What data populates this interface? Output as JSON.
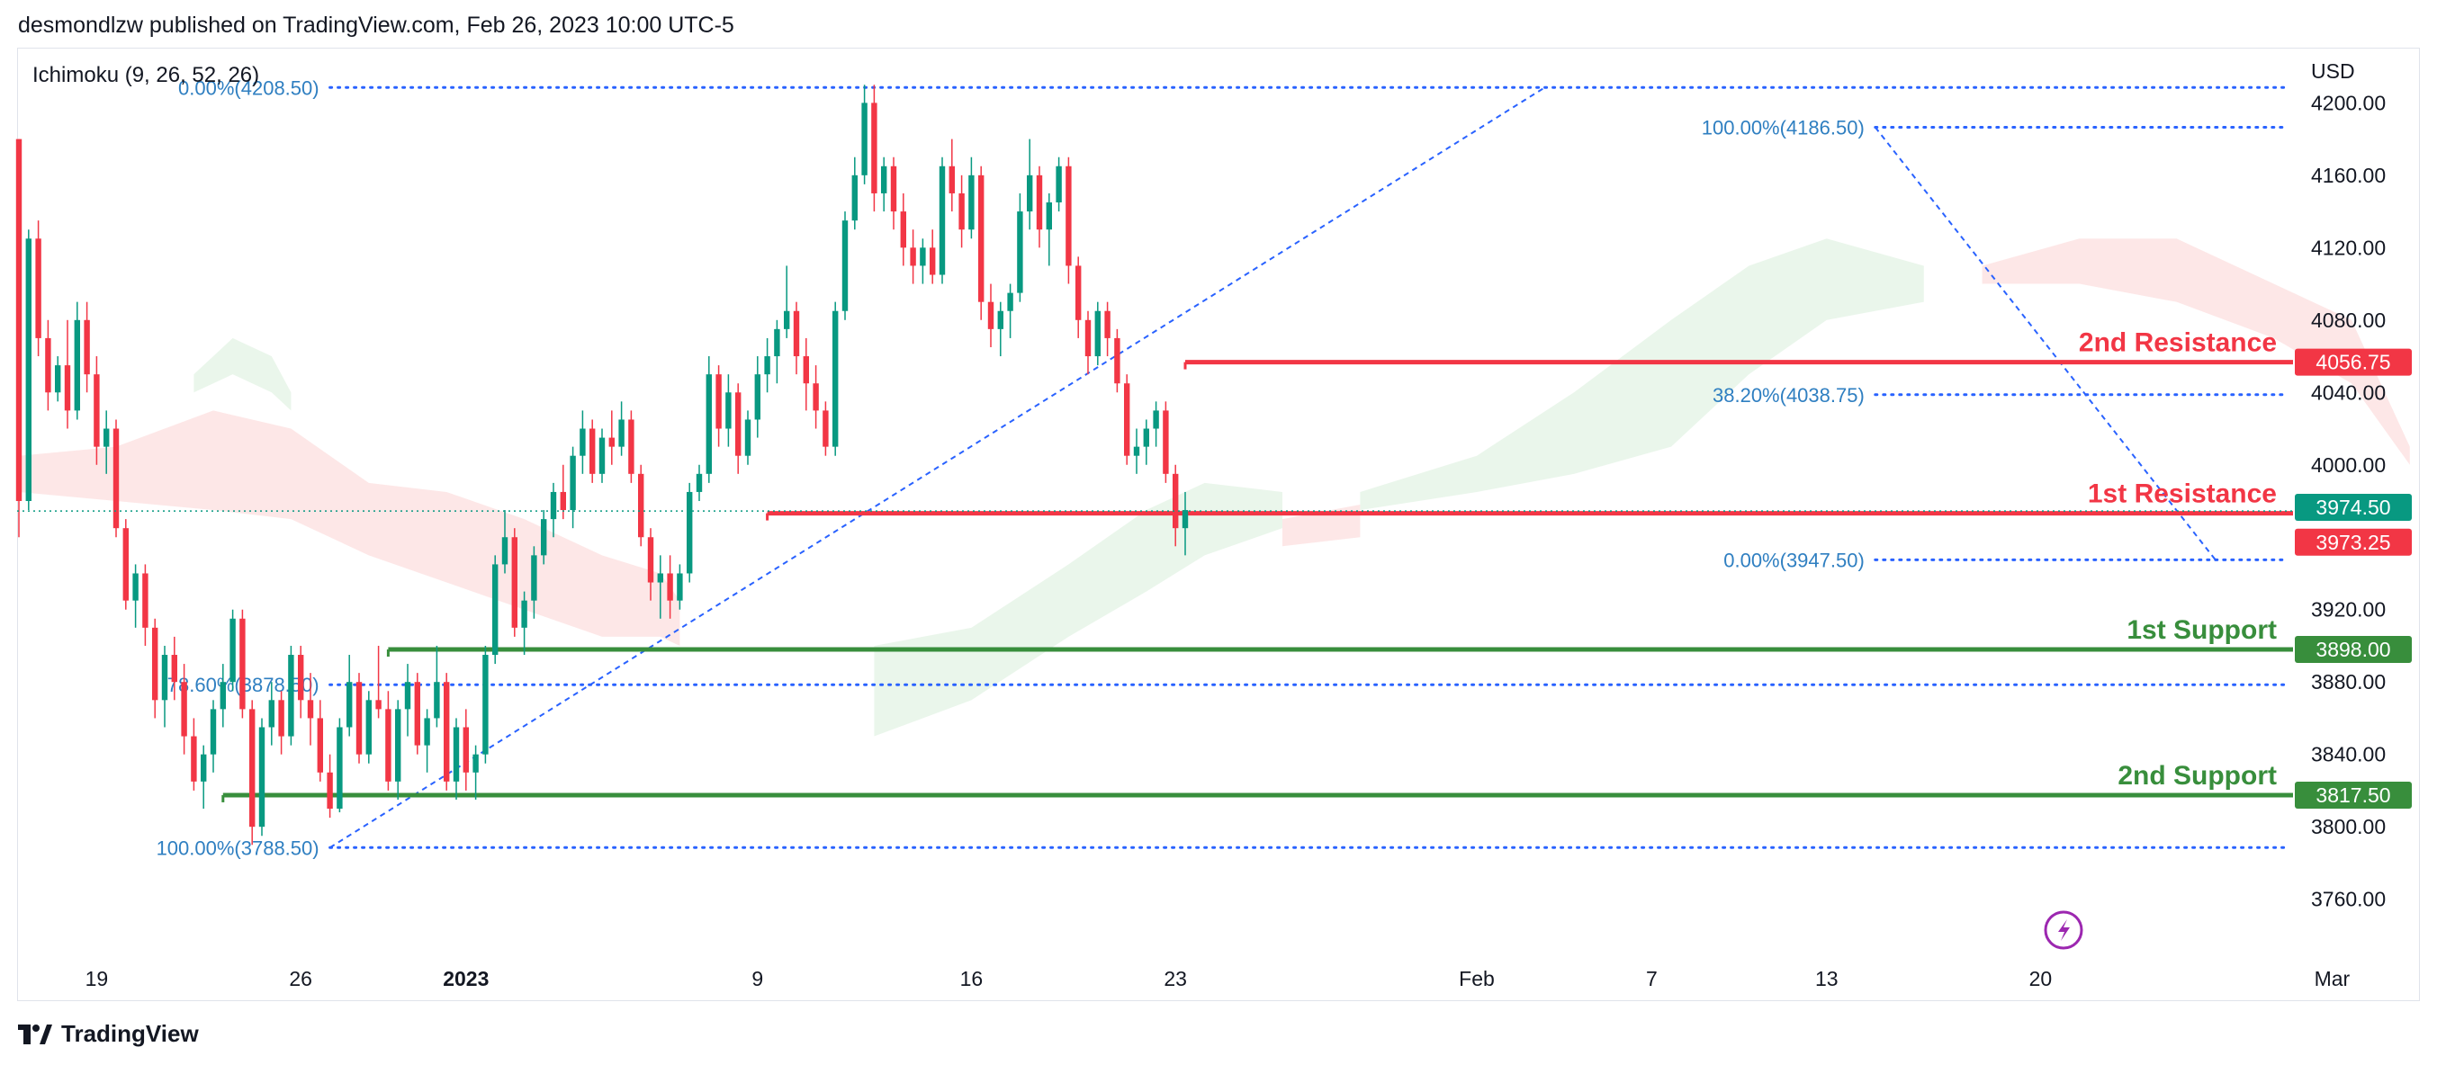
{
  "header": {
    "text": "desmondlzw published on TradingView.com, Feb 26, 2023 10:00 UTC-5"
  },
  "footer": {
    "brand": "TradingView"
  },
  "colors": {
    "up": "#089981",
    "down": "#f23645",
    "resistance": "#f23645",
    "support": "#388e3c",
    "fib": "#2962ff",
    "fib_text": "#2f7fc1",
    "cloud_bull": "#e8f5e9",
    "cloud_bear": "#fde4e4"
  },
  "chart_data": {
    "type": "candlestick",
    "indicator": "Ichimoku (9, 26, 52, 26)",
    "currency": "USD",
    "ylim": [
      3730,
      4230
    ],
    "y_ticks": [
      3760,
      3800,
      3840,
      3880,
      3920,
      4000,
      4040,
      4080,
      4120,
      4160,
      4200
    ],
    "x_ticks": [
      {
        "label": "19",
        "bar": 8
      },
      {
        "label": "26",
        "bar": 29
      },
      {
        "label": "2023",
        "bar": 46,
        "bold": true
      },
      {
        "label": "9",
        "bar": 76
      },
      {
        "label": "16",
        "bar": 98
      },
      {
        "label": "23",
        "bar": 119
      },
      {
        "label": "Feb",
        "bar": 150
      },
      {
        "label": "7",
        "bar": 168
      },
      {
        "label": "13",
        "bar": 186
      },
      {
        "label": "20",
        "bar": 208
      },
      {
        "label": "Mar",
        "bar": 238
      }
    ],
    "last_price": 3974.5,
    "levels": [
      {
        "name": "2nd Resistance",
        "value": 4056.75,
        "label": "4056.75",
        "kind": "resistance",
        "start_bar": 120
      },
      {
        "name": "1st Resistance",
        "value": 3973.25,
        "label": "3973.25",
        "kind": "resistance",
        "start_bar": 77
      },
      {
        "name": "1st Support",
        "value": 3898.0,
        "label": "3898.00",
        "kind": "support",
        "start_bar": 38
      },
      {
        "name": "2nd Support",
        "value": 3817.5,
        "label": "3817.50",
        "kind": "support",
        "start_bar": 21
      }
    ],
    "fibs": [
      {
        "label": "0.00%(4208.50)",
        "value": 4208.5,
        "x0_bar": 32,
        "x1_bar": 251,
        "label_side": "left",
        "label_bar": 32
      },
      {
        "label": "78.60%(3878.50)",
        "value": 3878.5,
        "x0_bar": 32,
        "x1_bar": 251,
        "label_side": "left",
        "label_bar": 32
      },
      {
        "label": "100.00%(3788.50)",
        "value": 3788.5,
        "x0_bar": 32,
        "x1_bar": 251,
        "label_side": "left",
        "label_bar": 32
      },
      {
        "label": "100.00%(4186.50)",
        "value": 4186.5,
        "x0_bar": 191,
        "x1_bar": 251,
        "label_side": "left",
        "label_bar": 191
      },
      {
        "label": "38.20%(4038.75)",
        "value": 4038.75,
        "x0_bar": 191,
        "x1_bar": 251,
        "label_side": "left",
        "label_bar": 191
      },
      {
        "label": "0.00%(3947.50)",
        "value": 3947.5,
        "x0_bar": 191,
        "x1_bar": 251,
        "label_side": "left",
        "label_bar": 191
      }
    ],
    "trend_lines": [
      {
        "from": [
          32,
          3788.5
        ],
        "to": [
          157,
          4208.5
        ]
      },
      {
        "from": [
          191,
          4186.5
        ],
        "to": [
          226,
          3947.5
        ]
      }
    ],
    "cloud": [
      {
        "kind": "bear",
        "points": [
          [
            0,
            4005
          ],
          [
            10,
            4010
          ],
          [
            20,
            4030
          ],
          [
            28,
            4020
          ],
          [
            36,
            3990
          ],
          [
            44,
            3985
          ],
          [
            52,
            3970
          ],
          [
            60,
            3950
          ],
          [
            66,
            3940
          ],
          [
            68,
            3925
          ]
        ],
        "base": [
          [
            0,
            3985
          ],
          [
            10,
            3980
          ],
          [
            20,
            3975
          ],
          [
            28,
            3970
          ],
          [
            36,
            3950
          ],
          [
            44,
            3935
          ],
          [
            52,
            3920
          ],
          [
            60,
            3905
          ],
          [
            66,
            3905
          ],
          [
            68,
            3900
          ]
        ]
      },
      {
        "kind": "bull",
        "points": [
          [
            18,
            4050
          ],
          [
            22,
            4070
          ],
          [
            26,
            4060
          ],
          [
            28,
            4040
          ]
        ],
        "base": [
          [
            18,
            4040
          ],
          [
            22,
            4050
          ],
          [
            26,
            4040
          ],
          [
            28,
            4030
          ]
        ]
      },
      {
        "kind": "bull",
        "points": [
          [
            88,
            3900
          ],
          [
            98,
            3910
          ],
          [
            108,
            3945
          ],
          [
            116,
            3975
          ],
          [
            122,
            3990
          ],
          [
            130,
            3985
          ]
        ],
        "base": [
          [
            88,
            3850
          ],
          [
            98,
            3870
          ],
          [
            108,
            3905
          ],
          [
            116,
            3930
          ],
          [
            122,
            3950
          ],
          [
            130,
            3965
          ]
        ]
      },
      {
        "kind": "bull",
        "points": [
          [
            138,
            3985
          ],
          [
            150,
            4005
          ],
          [
            160,
            4040
          ],
          [
            170,
            4080
          ],
          [
            178,
            4110
          ],
          [
            186,
            4125
          ],
          [
            196,
            4110
          ]
        ],
        "base": [
          [
            138,
            3975
          ],
          [
            150,
            3985
          ],
          [
            160,
            3995
          ],
          [
            170,
            4010
          ],
          [
            178,
            4050
          ],
          [
            186,
            4080
          ],
          [
            196,
            4090
          ]
        ]
      },
      {
        "kind": "bear",
        "points": [
          [
            130,
            3970
          ],
          [
            138,
            3978
          ]
        ],
        "base": [
          [
            130,
            3955
          ],
          [
            138,
            3960
          ]
        ]
      },
      {
        "kind": "bear",
        "points": [
          [
            202,
            4110
          ],
          [
            212,
            4125
          ],
          [
            222,
            4125
          ],
          [
            232,
            4100
          ],
          [
            240,
            4080
          ],
          [
            246,
            4010
          ]
        ],
        "base": [
          [
            202,
            4100
          ],
          [
            212,
            4100
          ],
          [
            222,
            4090
          ],
          [
            232,
            4070
          ],
          [
            240,
            4045
          ],
          [
            246,
            4000
          ]
        ]
      }
    ],
    "candles": [
      [
        4180,
        4180,
        3960,
        3980
      ],
      [
        3980,
        4130,
        3975,
        4125
      ],
      [
        4125,
        4135,
        4060,
        4070
      ],
      [
        4070,
        4080,
        4030,
        4040
      ],
      [
        4040,
        4060,
        4035,
        4055
      ],
      [
        4055,
        4080,
        4020,
        4030
      ],
      [
        4030,
        4090,
        4025,
        4080
      ],
      [
        4080,
        4090,
        4040,
        4050
      ],
      [
        4050,
        4060,
        4000,
        4010
      ],
      [
        4010,
        4030,
        3995,
        4020
      ],
      [
        4020,
        4025,
        3960,
        3965
      ],
      [
        3965,
        3970,
        3920,
        3925
      ],
      [
        3925,
        3945,
        3910,
        3940
      ],
      [
        3940,
        3945,
        3900,
        3910
      ],
      [
        3910,
        3915,
        3860,
        3870
      ],
      [
        3870,
        3900,
        3855,
        3895
      ],
      [
        3895,
        3905,
        3870,
        3880
      ],
      [
        3880,
        3890,
        3840,
        3850
      ],
      [
        3850,
        3860,
        3820,
        3825
      ],
      [
        3825,
        3845,
        3810,
        3840
      ],
      [
        3840,
        3870,
        3830,
        3865
      ],
      [
        3865,
        3890,
        3855,
        3880
      ],
      [
        3880,
        3920,
        3875,
        3915
      ],
      [
        3915,
        3920,
        3860,
        3865
      ],
      [
        3865,
        3870,
        3790,
        3800
      ],
      [
        3800,
        3860,
        3795,
        3855
      ],
      [
        3855,
        3880,
        3845,
        3870
      ],
      [
        3870,
        3875,
        3840,
        3850
      ],
      [
        3850,
        3900,
        3845,
        3895
      ],
      [
        3895,
        3900,
        3860,
        3870
      ],
      [
        3870,
        3885,
        3845,
        3860
      ],
      [
        3860,
        3870,
        3825,
        3830
      ],
      [
        3830,
        3840,
        3805,
        3810
      ],
      [
        3810,
        3860,
        3808,
        3855
      ],
      [
        3855,
        3895,
        3850,
        3880
      ],
      [
        3880,
        3885,
        3835,
        3840
      ],
      [
        3840,
        3875,
        3835,
        3870
      ],
      [
        3870,
        3900,
        3860,
        3865
      ],
      [
        3865,
        3875,
        3820,
        3825
      ],
      [
        3825,
        3870,
        3815,
        3865
      ],
      [
        3865,
        3890,
        3850,
        3880
      ],
      [
        3880,
        3885,
        3840,
        3845
      ],
      [
        3845,
        3865,
        3830,
        3860
      ],
      [
        3860,
        3900,
        3855,
        3880
      ],
      [
        3880,
        3885,
        3820,
        3825
      ],
      [
        3825,
        3860,
        3815,
        3855
      ],
      [
        3855,
        3865,
        3820,
        3830
      ],
      [
        3830,
        3845,
        3815,
        3840
      ],
      [
        3840,
        3900,
        3835,
        3895
      ],
      [
        3895,
        3950,
        3890,
        3945
      ],
      [
        3945,
        3975,
        3940,
        3960
      ],
      [
        3960,
        3965,
        3905,
        3910
      ],
      [
        3910,
        3930,
        3895,
        3925
      ],
      [
        3925,
        3955,
        3915,
        3950
      ],
      [
        3950,
        3975,
        3945,
        3970
      ],
      [
        3970,
        3990,
        3960,
        3985
      ],
      [
        3985,
        4000,
        3970,
        3975
      ],
      [
        3975,
        4010,
        3965,
        4005
      ],
      [
        4005,
        4030,
        3995,
        4020
      ],
      [
        4020,
        4025,
        3990,
        3995
      ],
      [
        3995,
        4020,
        3990,
        4015
      ],
      [
        4015,
        4030,
        4000,
        4010
      ],
      [
        4010,
        4035,
        4005,
        4025
      ],
      [
        4025,
        4030,
        3990,
        3995
      ],
      [
        3995,
        4000,
        3955,
        3960
      ],
      [
        3960,
        3965,
        3925,
        3935
      ],
      [
        3935,
        3950,
        3915,
        3940
      ],
      [
        3940,
        3950,
        3915,
        3925
      ],
      [
        3925,
        3945,
        3920,
        3940
      ],
      [
        3940,
        3990,
        3935,
        3985
      ],
      [
        3985,
        4000,
        3980,
        3995
      ],
      [
        3995,
        4060,
        3990,
        4050
      ],
      [
        4050,
        4055,
        4010,
        4020
      ],
      [
        4020,
        4050,
        4010,
        4040
      ],
      [
        4040,
        4045,
        3995,
        4005
      ],
      [
        4005,
        4030,
        4000,
        4025
      ],
      [
        4025,
        4060,
        4015,
        4050
      ],
      [
        4050,
        4070,
        4040,
        4060
      ],
      [
        4060,
        4080,
        4045,
        4075
      ],
      [
        4075,
        4110,
        4070,
        4085
      ],
      [
        4085,
        4090,
        4050,
        4060
      ],
      [
        4060,
        4070,
        4030,
        4045
      ],
      [
        4045,
        4055,
        4020,
        4030
      ],
      [
        4030,
        4035,
        4005,
        4010
      ],
      [
        4010,
        4090,
        4005,
        4085
      ],
      [
        4085,
        4140,
        4080,
        4135
      ],
      [
        4135,
        4170,
        4130,
        4160
      ],
      [
        4160,
        4210,
        4155,
        4200
      ],
      [
        4200,
        4210,
        4140,
        4150
      ],
      [
        4150,
        4170,
        4140,
        4165
      ],
      [
        4165,
        4170,
        4130,
        4140
      ],
      [
        4140,
        4150,
        4110,
        4120
      ],
      [
        4120,
        4130,
        4100,
        4110
      ],
      [
        4110,
        4125,
        4100,
        4120
      ],
      [
        4120,
        4130,
        4100,
        4105
      ],
      [
        4105,
        4170,
        4100,
        4165
      ],
      [
        4165,
        4180,
        4140,
        4150
      ],
      [
        4150,
        4160,
        4120,
        4130
      ],
      [
        4130,
        4170,
        4125,
        4160
      ],
      [
        4160,
        4165,
        4080,
        4090
      ],
      [
        4090,
        4100,
        4065,
        4075
      ],
      [
        4075,
        4090,
        4060,
        4085
      ],
      [
        4085,
        4100,
        4070,
        4095
      ],
      [
        4095,
        4150,
        4090,
        4140
      ],
      [
        4140,
        4180,
        4130,
        4160
      ],
      [
        4160,
        4165,
        4120,
        4130
      ],
      [
        4130,
        4150,
        4110,
        4145
      ],
      [
        4145,
        4170,
        4140,
        4165
      ],
      [
        4165,
        4170,
        4100,
        4110
      ],
      [
        4110,
        4115,
        4070,
        4080
      ],
      [
        4080,
        4085,
        4050,
        4060
      ],
      [
        4060,
        4090,
        4055,
        4085
      ],
      [
        4085,
        4090,
        4060,
        4070
      ],
      [
        4070,
        4075,
        4040,
        4045
      ],
      [
        4045,
        4050,
        4000,
        4005
      ],
      [
        4005,
        4020,
        3995,
        4010
      ],
      [
        4010,
        4025,
        4000,
        4020
      ],
      [
        4020,
        4035,
        4010,
        4030
      ],
      [
        4030,
        4035,
        3990,
        3995
      ],
      [
        3995,
        4000,
        3955,
        3965
      ],
      [
        3965,
        3985,
        3950,
        3975
      ]
    ]
  },
  "labels": {
    "indicator": "Ichimoku (9, 26, 52, 26)",
    "currency": "USD",
    "last_price": "3974.50"
  }
}
